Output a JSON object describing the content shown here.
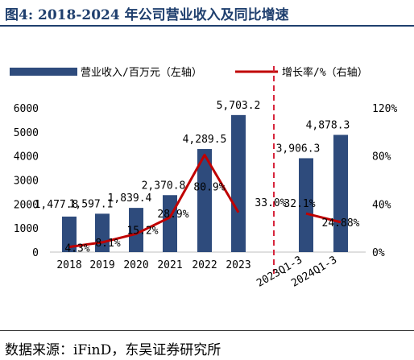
{
  "figure": {
    "title": "图4:  2018-2024 年公司营业收入及同比增速",
    "source": "数据来源：iFinD，东吴证券研究所"
  },
  "chart_data": {
    "type": "bar",
    "categories": [
      "2018",
      "2019",
      "2020",
      "2021",
      "2022",
      "2023",
      "2023Q1-3",
      "2024Q1-3"
    ],
    "series": [
      {
        "name": "营业收入/百万元（左轴）",
        "axis": "left",
        "kind": "bar",
        "color": "#2e4b7c",
        "values": [
          1477.8,
          1597.1,
          1839.4,
          2370.8,
          4289.5,
          5703.2,
          3906.3,
          4878.3
        ],
        "labels": [
          "1,477.8",
          "1,597.1",
          "1,839.4",
          "2,370.8",
          "4,289.5",
          "5,703.2",
          "3,906.3",
          "4,878.3"
        ]
      },
      {
        "name": "增长率/%（右轴）",
        "axis": "right",
        "kind": "line",
        "color": "#c00000",
        "values": [
          4.3,
          8.1,
          15.2,
          28.9,
          80.9,
          33.0,
          32.1,
          24.88
        ],
        "labels": [
          "4.3%",
          "8.1%",
          "15.2%",
          "28.9%",
          "80.9%",
          "33.0%",
          "32.1%",
          "24.88%"
        ]
      }
    ],
    "y_left": {
      "ylim": [
        0,
        6000
      ],
      "ticks": [
        0,
        1000,
        2000,
        3000,
        4000,
        5000,
        6000
      ]
    },
    "y_right": {
      "ylim": [
        0,
        120
      ],
      "ticks": [
        "0%",
        "40%",
        "80%",
        "120%"
      ]
    },
    "divider_after": "2023",
    "legend_position": "top",
    "grid": false
  }
}
